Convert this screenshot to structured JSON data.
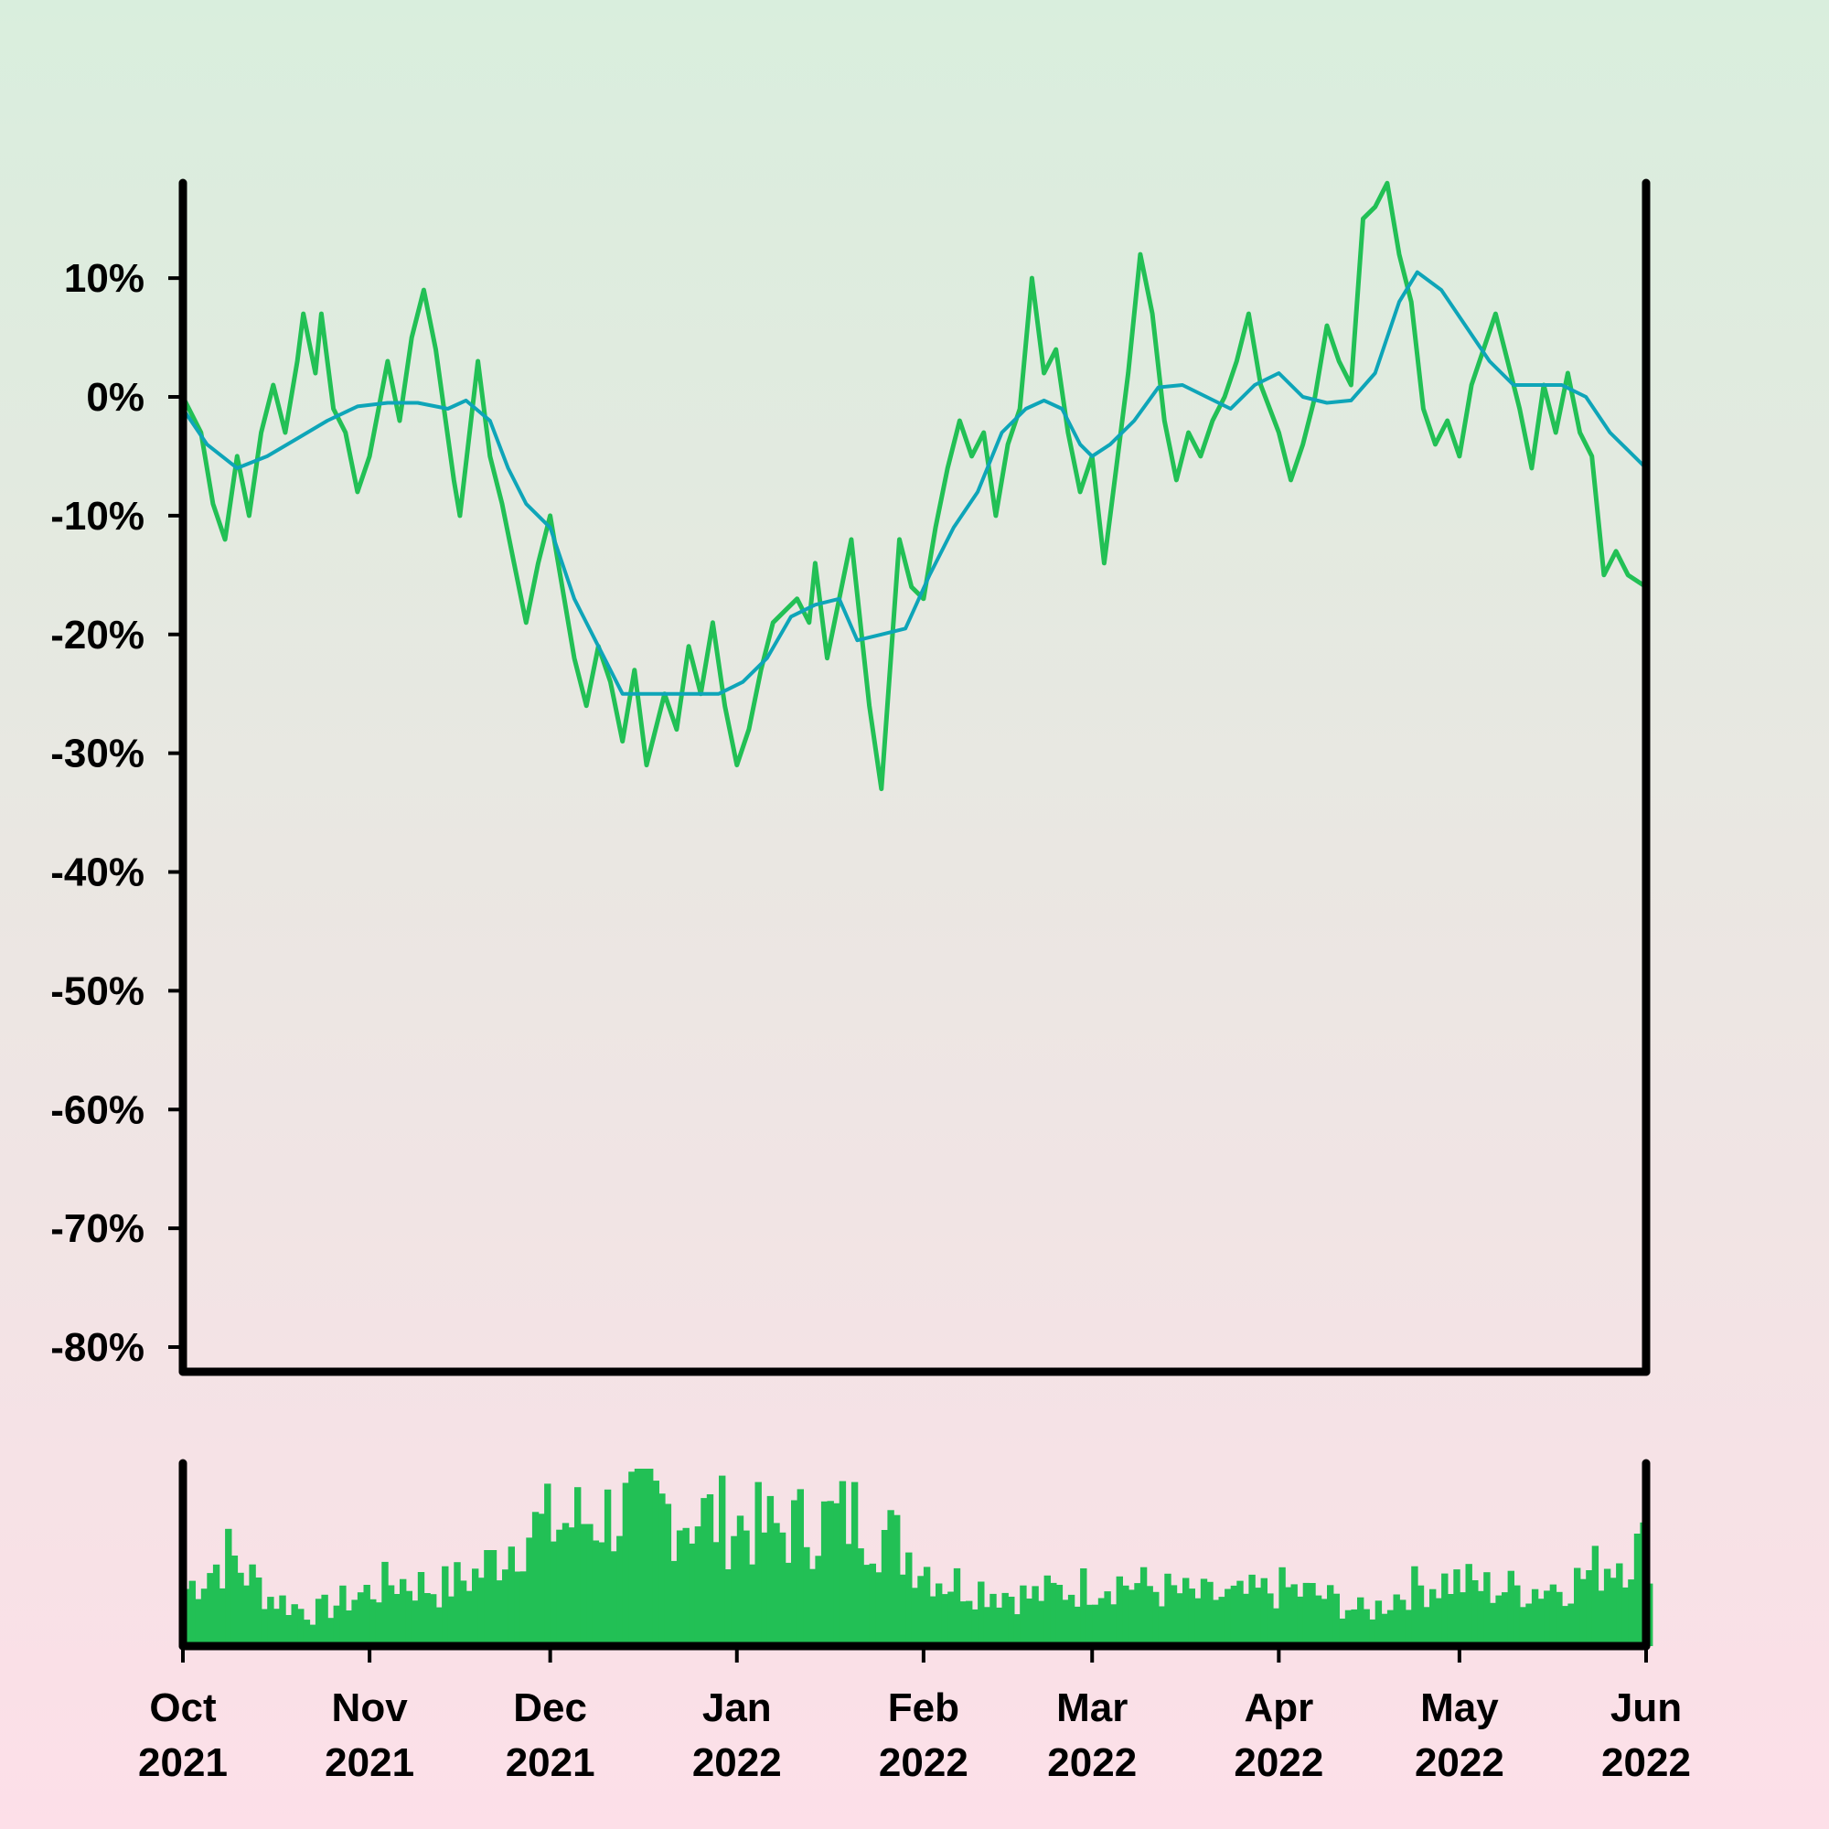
{
  "chart_data": {
    "type": "line",
    "x_start": "2021-10-01",
    "x_end": "2022-06-01",
    "ylim": [
      -80,
      18
    ],
    "y_ticks": [
      10,
      0,
      -10,
      -20,
      -30,
      -40,
      -50,
      -60,
      -70,
      -80
    ],
    "y_tick_labels": [
      "10%",
      "0%",
      "-10%",
      "-20%",
      "-30%",
      "-40%",
      "-50%",
      "-60%",
      "-70%",
      "-80%"
    ],
    "x_ticks": [
      {
        "date": "2021-10-01",
        "month": "Oct",
        "year": "2021"
      },
      {
        "date": "2021-11-01",
        "month": "Nov",
        "year": "2021"
      },
      {
        "date": "2021-12-01",
        "month": "Dec",
        "year": "2021"
      },
      {
        "date": "2022-01-01",
        "month": "Jan",
        "year": "2022"
      },
      {
        "date": "2022-02-01",
        "month": "Feb",
        "year": "2022"
      },
      {
        "date": "2022-03-01",
        "month": "Mar",
        "year": "2022"
      },
      {
        "date": "2022-04-01",
        "month": "Apr",
        "year": "2022"
      },
      {
        "date": "2022-05-01",
        "month": "May",
        "year": "2022"
      },
      {
        "date": "2022-06-01",
        "month": "Jun",
        "year": "2022"
      }
    ],
    "series": [
      {
        "role": "price",
        "color": "#22c055",
        "points": [
          [
            "2021-10-01",
            0
          ],
          [
            "2021-10-04",
            -3
          ],
          [
            "2021-10-06",
            -9
          ],
          [
            "2021-10-08",
            -12
          ],
          [
            "2021-10-10",
            -5
          ],
          [
            "2021-10-12",
            -10
          ],
          [
            "2021-10-14",
            -3
          ],
          [
            "2021-10-16",
            1
          ],
          [
            "2021-10-18",
            -3
          ],
          [
            "2021-10-20",
            3
          ],
          [
            "2021-10-21",
            7
          ],
          [
            "2021-10-23",
            2
          ],
          [
            "2021-10-24",
            7
          ],
          [
            "2021-10-26",
            -1
          ],
          [
            "2021-10-28",
            -3
          ],
          [
            "2021-10-30",
            -8
          ],
          [
            "2021-11-01",
            -5
          ],
          [
            "2021-11-04",
            3
          ],
          [
            "2021-11-06",
            -2
          ],
          [
            "2021-11-08",
            5
          ],
          [
            "2021-11-10",
            9
          ],
          [
            "2021-11-12",
            4
          ],
          [
            "2021-11-15",
            -7
          ],
          [
            "2021-11-16",
            -10
          ],
          [
            "2021-11-19",
            3
          ],
          [
            "2021-11-21",
            -5
          ],
          [
            "2021-11-23",
            -9
          ],
          [
            "2021-11-25",
            -14
          ],
          [
            "2021-11-27",
            -19
          ],
          [
            "2021-11-29",
            -14
          ],
          [
            "2021-12-01",
            -10
          ],
          [
            "2021-12-03",
            -16
          ],
          [
            "2021-12-05",
            -22
          ],
          [
            "2021-12-07",
            -26
          ],
          [
            "2021-12-09",
            -21
          ],
          [
            "2021-12-11",
            -24
          ],
          [
            "2021-12-13",
            -29
          ],
          [
            "2021-12-15",
            -23
          ],
          [
            "2021-12-17",
            -31
          ],
          [
            "2021-12-20",
            -25
          ],
          [
            "2021-12-22",
            -28
          ],
          [
            "2021-12-24",
            -21
          ],
          [
            "2021-12-26",
            -25
          ],
          [
            "2021-12-28",
            -19
          ],
          [
            "2021-12-30",
            -26
          ],
          [
            "2022-01-01",
            -31
          ],
          [
            "2022-01-03",
            -28
          ],
          [
            "2022-01-05",
            -23
          ],
          [
            "2022-01-07",
            -19
          ],
          [
            "2022-01-09",
            -18
          ],
          [
            "2022-01-11",
            -17
          ],
          [
            "2022-01-13",
            -19
          ],
          [
            "2022-01-14",
            -14
          ],
          [
            "2022-01-16",
            -22
          ],
          [
            "2022-01-18",
            -17
          ],
          [
            "2022-01-20",
            -12
          ],
          [
            "2022-01-23",
            -26
          ],
          [
            "2022-01-25",
            -33
          ],
          [
            "2022-01-28",
            -12
          ],
          [
            "2022-01-30",
            -16
          ],
          [
            "2022-02-01",
            -17
          ],
          [
            "2022-02-03",
            -11
          ],
          [
            "2022-02-05",
            -6
          ],
          [
            "2022-02-07",
            -2
          ],
          [
            "2022-02-09",
            -5
          ],
          [
            "2022-02-11",
            -3
          ],
          [
            "2022-02-13",
            -10
          ],
          [
            "2022-02-15",
            -4
          ],
          [
            "2022-02-17",
            -1
          ],
          [
            "2022-02-19",
            10
          ],
          [
            "2022-02-21",
            2
          ],
          [
            "2022-02-23",
            4
          ],
          [
            "2022-02-25",
            -3
          ],
          [
            "2022-02-27",
            -8
          ],
          [
            "2022-03-01",
            -5
          ],
          [
            "2022-03-03",
            -14
          ],
          [
            "2022-03-05",
            -6
          ],
          [
            "2022-03-07",
            2
          ],
          [
            "2022-03-09",
            12
          ],
          [
            "2022-03-11",
            7
          ],
          [
            "2022-03-13",
            -2
          ],
          [
            "2022-03-15",
            -7
          ],
          [
            "2022-03-17",
            -3
          ],
          [
            "2022-03-19",
            -5
          ],
          [
            "2022-03-21",
            -2
          ],
          [
            "2022-03-23",
            0
          ],
          [
            "2022-03-25",
            3
          ],
          [
            "2022-03-27",
            7
          ],
          [
            "2022-03-29",
            1
          ],
          [
            "2022-04-01",
            -3
          ],
          [
            "2022-04-03",
            -7
          ],
          [
            "2022-04-05",
            -4
          ],
          [
            "2022-04-07",
            0
          ],
          [
            "2022-04-09",
            6
          ],
          [
            "2022-04-11",
            3
          ],
          [
            "2022-04-13",
            1
          ],
          [
            "2022-04-15",
            15
          ],
          [
            "2022-04-17",
            16
          ],
          [
            "2022-04-19",
            18
          ],
          [
            "2022-04-21",
            12
          ],
          [
            "2022-04-23",
            8
          ],
          [
            "2022-04-25",
            -1
          ],
          [
            "2022-04-27",
            -4
          ],
          [
            "2022-04-29",
            -2
          ],
          [
            "2022-05-01",
            -5
          ],
          [
            "2022-05-03",
            1
          ],
          [
            "2022-05-05",
            4
          ],
          [
            "2022-05-07",
            7
          ],
          [
            "2022-05-09",
            3
          ],
          [
            "2022-05-11",
            -1
          ],
          [
            "2022-05-13",
            -6
          ],
          [
            "2022-05-15",
            1
          ],
          [
            "2022-05-17",
            -3
          ],
          [
            "2022-05-19",
            2
          ],
          [
            "2022-05-21",
            -3
          ],
          [
            "2022-05-23",
            -5
          ],
          [
            "2022-05-25",
            -15
          ],
          [
            "2022-05-27",
            -13
          ],
          [
            "2022-05-29",
            -15
          ],
          [
            "2022-06-01",
            -16
          ]
        ]
      },
      {
        "role": "moving-average",
        "color": "#0ea5b8",
        "points": [
          [
            "2021-10-01",
            -1
          ],
          [
            "2021-10-05",
            -4
          ],
          [
            "2021-10-10",
            -6
          ],
          [
            "2021-10-15",
            -5
          ],
          [
            "2021-10-20",
            -3.5
          ],
          [
            "2021-10-25",
            -2
          ],
          [
            "2021-10-30",
            -0.8
          ],
          [
            "2021-11-04",
            -0.5
          ],
          [
            "2021-11-09",
            -0.5
          ],
          [
            "2021-11-14",
            -1
          ],
          [
            "2021-11-17",
            -0.3
          ],
          [
            "2021-11-21",
            -2
          ],
          [
            "2021-11-24",
            -6
          ],
          [
            "2021-11-27",
            -9
          ],
          [
            "2021-12-01",
            -11
          ],
          [
            "2021-12-05",
            -17
          ],
          [
            "2021-12-09",
            -21
          ],
          [
            "2021-12-13",
            -25
          ],
          [
            "2021-12-17",
            -25
          ],
          [
            "2021-12-21",
            -25
          ],
          [
            "2021-12-25",
            -25
          ],
          [
            "2021-12-29",
            -25
          ],
          [
            "2022-01-02",
            -24
          ],
          [
            "2022-01-06",
            -22
          ],
          [
            "2022-01-10",
            -18.5
          ],
          [
            "2022-01-14",
            -17.5
          ],
          [
            "2022-01-18",
            -17
          ],
          [
            "2022-01-21",
            -20.5
          ],
          [
            "2022-01-25",
            -20
          ],
          [
            "2022-01-29",
            -19.5
          ],
          [
            "2022-02-02",
            -15
          ],
          [
            "2022-02-06",
            -11
          ],
          [
            "2022-02-10",
            -8
          ],
          [
            "2022-02-14",
            -3
          ],
          [
            "2022-02-18",
            -1
          ],
          [
            "2022-02-21",
            -0.3
          ],
          [
            "2022-02-24",
            -1
          ],
          [
            "2022-02-27",
            -4
          ],
          [
            "2022-03-01",
            -5
          ],
          [
            "2022-03-04",
            -4
          ],
          [
            "2022-03-08",
            -2
          ],
          [
            "2022-03-12",
            0.8
          ],
          [
            "2022-03-16",
            1
          ],
          [
            "2022-03-20",
            0
          ],
          [
            "2022-03-24",
            -1
          ],
          [
            "2022-03-28",
            1
          ],
          [
            "2022-04-01",
            2
          ],
          [
            "2022-04-05",
            0
          ],
          [
            "2022-04-09",
            -0.5
          ],
          [
            "2022-04-13",
            -0.3
          ],
          [
            "2022-04-17",
            2
          ],
          [
            "2022-04-21",
            8
          ],
          [
            "2022-04-24",
            10.5
          ],
          [
            "2022-04-28",
            9
          ],
          [
            "2022-05-02",
            6
          ],
          [
            "2022-05-06",
            3
          ],
          [
            "2022-05-10",
            1
          ],
          [
            "2022-05-14",
            1
          ],
          [
            "2022-05-18",
            1
          ],
          [
            "2022-05-22",
            0
          ],
          [
            "2022-05-26",
            -3
          ],
          [
            "2022-06-01",
            -6
          ]
        ]
      }
    ],
    "volume": {
      "color": "#22c055",
      "points": [
        [
          "2021-10-01",
          0.35
        ],
        [
          "2021-10-08",
          0.55
        ],
        [
          "2021-10-15",
          0.3
        ],
        [
          "2021-10-22",
          0.2
        ],
        [
          "2021-10-29",
          0.3
        ],
        [
          "2021-11-05",
          0.4
        ],
        [
          "2021-11-12",
          0.35
        ],
        [
          "2021-11-19",
          0.45
        ],
        [
          "2021-11-26",
          0.7
        ],
        [
          "2021-12-03",
          0.75
        ],
        [
          "2021-12-10",
          0.8
        ],
        [
          "2021-12-17",
          0.85
        ],
        [
          "2021-12-24",
          0.8
        ],
        [
          "2021-12-31",
          0.75
        ],
        [
          "2022-01-07",
          0.7
        ],
        [
          "2022-01-14",
          0.75
        ],
        [
          "2022-01-21",
          0.8
        ],
        [
          "2022-01-28",
          0.6
        ],
        [
          "2022-02-04",
          0.4
        ],
        [
          "2022-02-11",
          0.35
        ],
        [
          "2022-02-18",
          0.3
        ],
        [
          "2022-02-25",
          0.35
        ],
        [
          "2022-03-04",
          0.4
        ],
        [
          "2022-03-11",
          0.35
        ],
        [
          "2022-03-18",
          0.3
        ],
        [
          "2022-03-25",
          0.3
        ],
        [
          "2022-04-01",
          0.35
        ],
        [
          "2022-04-08",
          0.3
        ],
        [
          "2022-04-15",
          0.2
        ],
        [
          "2022-04-22",
          0.35
        ],
        [
          "2022-04-29",
          0.4
        ],
        [
          "2022-05-06",
          0.35
        ],
        [
          "2022-05-13",
          0.35
        ],
        [
          "2022-05-20",
          0.4
        ],
        [
          "2022-05-27",
          0.55
        ],
        [
          "2022-06-01",
          0.6
        ]
      ]
    }
  }
}
